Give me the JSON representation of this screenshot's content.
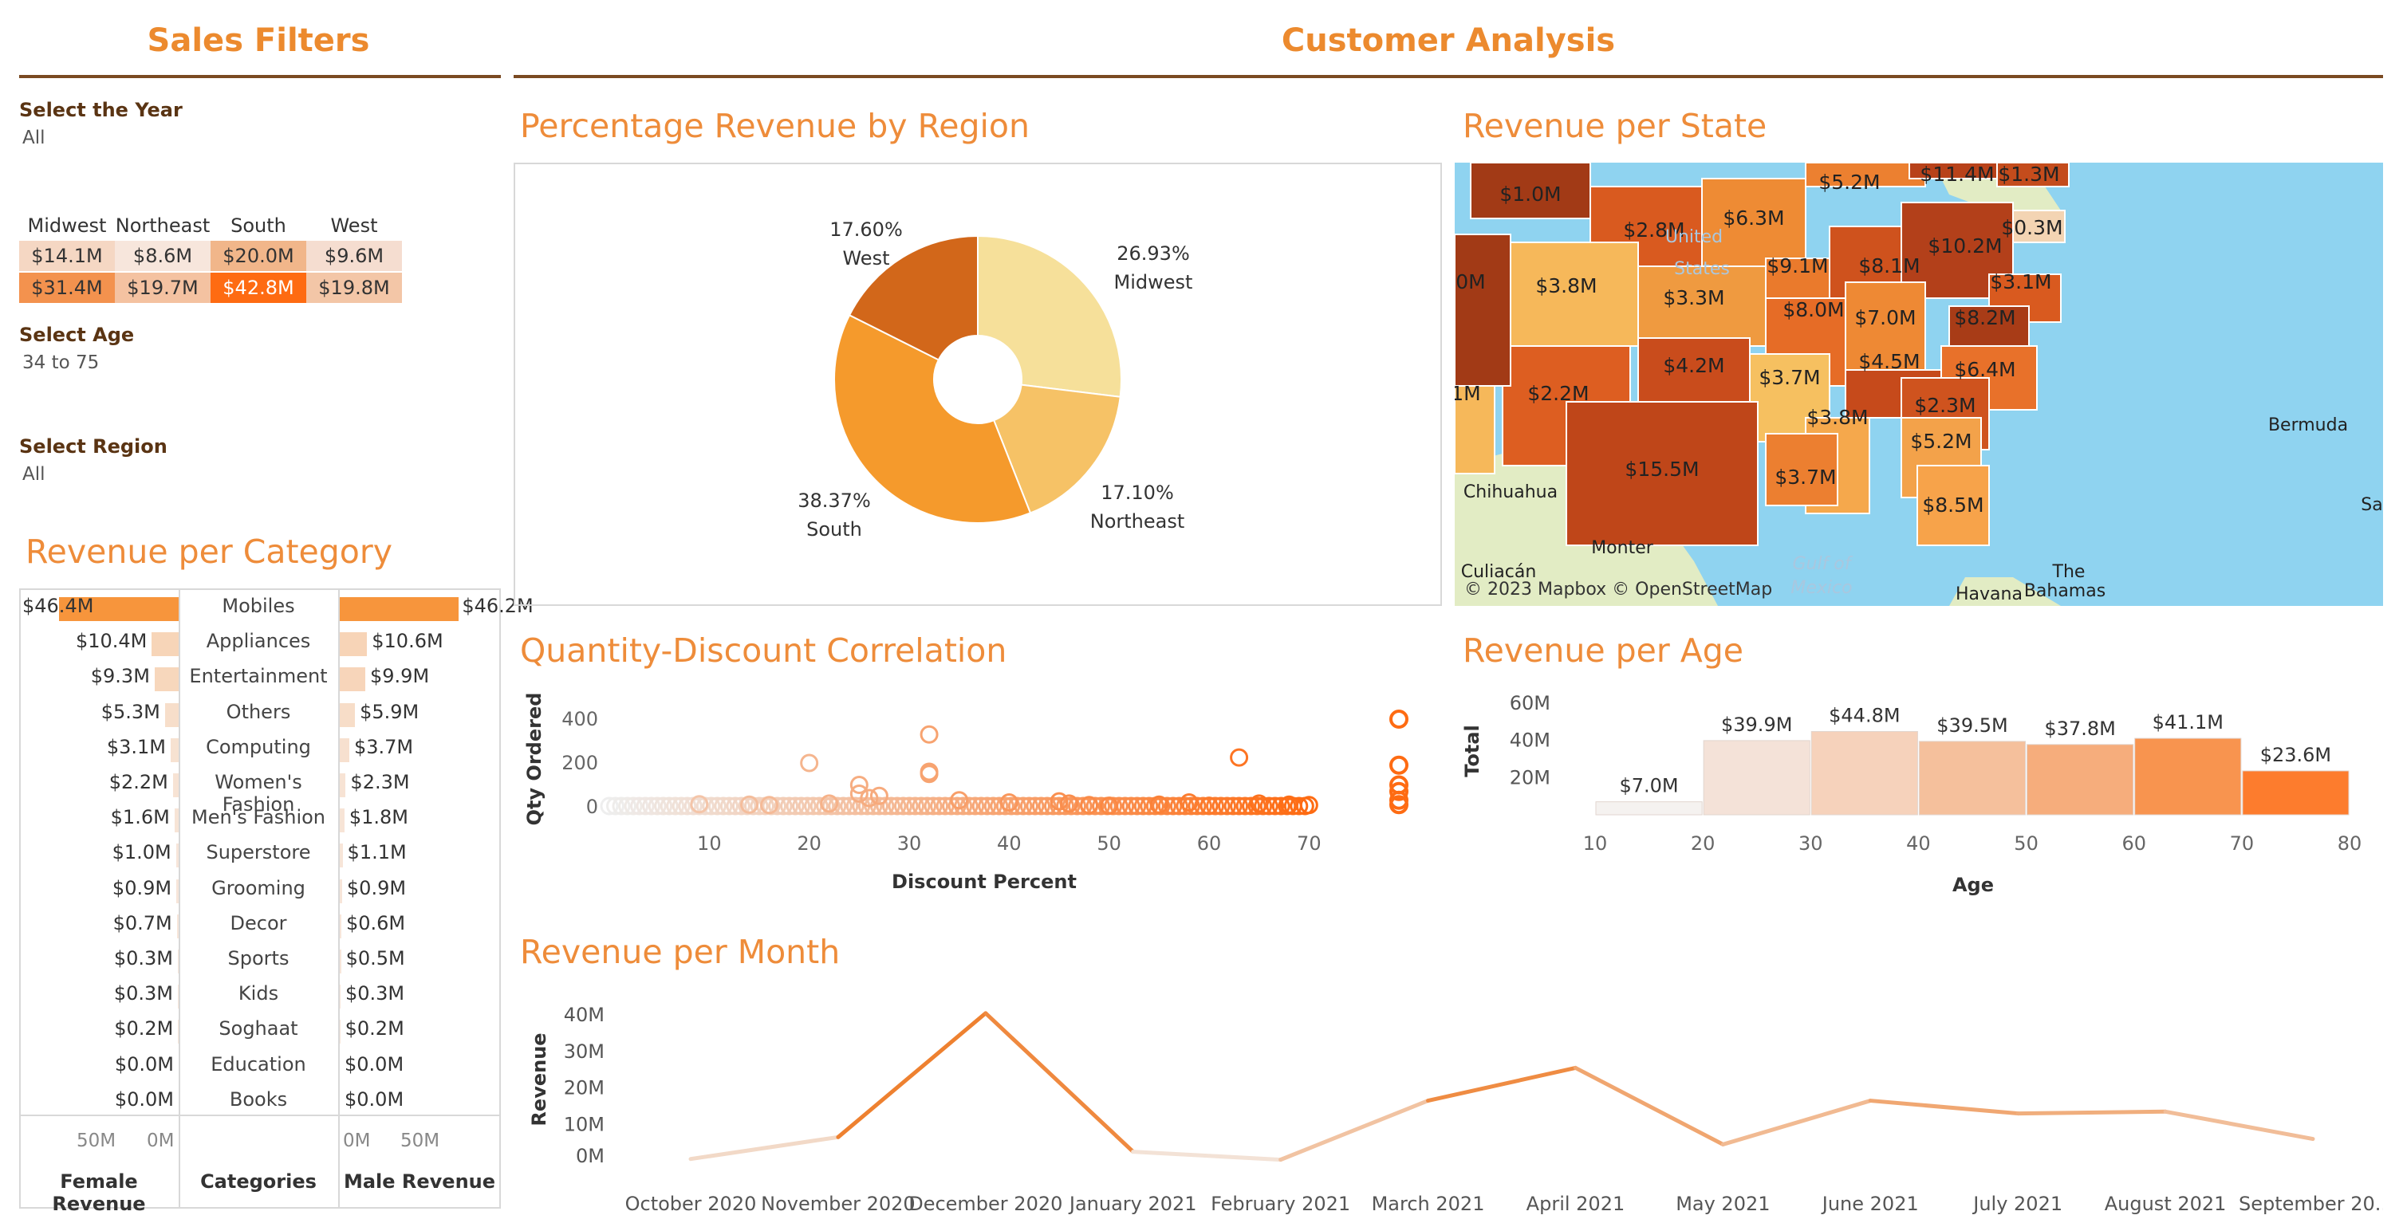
{
  "filters": {
    "header": "Sales Filters",
    "year_label": "Select the Year",
    "year_value": "All",
    "age_label": "Select Age",
    "age_value": "34 to 75",
    "region_label": "Select Region",
    "region_value": "All",
    "region_table": {
      "headers": [
        "Midwest",
        "Northeast",
        "South",
        "West"
      ],
      "row1": [
        "$14.1M",
        "$8.6M",
        "$20.0M",
        "$9.6M"
      ],
      "row2": [
        "$31.4M",
        "$19.7M",
        "$42.8M",
        "$19.8M"
      ],
      "row1_colors": [
        "#f5d7c3",
        "#f7e6dc",
        "#f1b68a",
        "#f5ddd0"
      ],
      "row2_colors": [
        "#f3924e",
        "#f4c2a1",
        "#fe6b12",
        "#f3c6a7"
      ]
    }
  },
  "main_header": "Customer Analysis",
  "category": {
    "title": "Revenue per Category",
    "female_label": "Female Revenue",
    "categories_label": "Categories",
    "male_label": "Male Revenue",
    "female_ticks": [
      "50M",
      "0M"
    ],
    "male_ticks": [
      "0M",
      "50M"
    ],
    "rows": [
      {
        "name": "Mobiles",
        "f": "$46.4M",
        "fv": 46.4,
        "m": "$46.2M",
        "mv": 46.2
      },
      {
        "name": "Appliances",
        "f": "$10.4M",
        "fv": 10.4,
        "m": "$10.6M",
        "mv": 10.6
      },
      {
        "name": "Entertainment",
        "f": "$9.3M",
        "fv": 9.3,
        "m": "$9.9M",
        "mv": 9.9
      },
      {
        "name": "Others",
        "f": "$5.3M",
        "fv": 5.3,
        "m": "$5.9M",
        "mv": 5.9
      },
      {
        "name": "Computing",
        "f": "$3.1M",
        "fv": 3.1,
        "m": "$3.7M",
        "mv": 3.7
      },
      {
        "name": "Women's Fashion",
        "f": "$2.2M",
        "fv": 2.2,
        "m": "$2.3M",
        "mv": 2.3
      },
      {
        "name": "Men's Fashion",
        "f": "$1.6M",
        "fv": 1.6,
        "m": "$1.8M",
        "mv": 1.8
      },
      {
        "name": "Superstore",
        "f": "$1.0M",
        "fv": 1.0,
        "m": "$1.1M",
        "mv": 1.1
      },
      {
        "name": "Grooming",
        "f": "$0.9M",
        "fv": 0.9,
        "m": "$0.9M",
        "mv": 0.9
      },
      {
        "name": "Decor",
        "f": "$0.7M",
        "fv": 0.7,
        "m": "$0.6M",
        "mv": 0.6
      },
      {
        "name": "Sports",
        "f": "$0.3M",
        "fv": 0.3,
        "m": "$0.5M",
        "mv": 0.5
      },
      {
        "name": "Kids",
        "f": "$0.3M",
        "fv": 0.3,
        "m": "$0.3M",
        "mv": 0.3
      },
      {
        "name": "Soghaat",
        "f": "$0.2M",
        "fv": 0.2,
        "m": "$0.2M",
        "mv": 0.2
      },
      {
        "name": "Education",
        "f": "$0.0M",
        "fv": 0.0,
        "m": "$0.0M",
        "mv": 0.0
      },
      {
        "name": "Books",
        "f": "$0.0M",
        "fv": 0.0,
        "m": "$0.0M",
        "mv": 0.0
      }
    ]
  },
  "chart_data": [
    {
      "type": "pie",
      "title": "Percentage Revenue by Region",
      "slices": [
        {
          "label": "Midwest",
          "pct": "26.93%",
          "value": 26.93,
          "color": "#f6e09a"
        },
        {
          "label": "Northeast",
          "pct": "17.10%",
          "value": 17.1,
          "color": "#f6c266"
        },
        {
          "label": "South",
          "pct": "38.37%",
          "value": 38.37,
          "color": "#f59a2c"
        },
        {
          "label": "West",
          "pct": "17.60%",
          "value": 17.6,
          "color": "#d2671a"
        }
      ]
    },
    {
      "type": "scatter",
      "title": "Quantity-Discount Correlation",
      "xlabel": "Discount Percent",
      "ylabel": "Qty Ordered",
      "xticks": [
        10,
        20,
        30,
        40,
        50,
        60,
        70
      ],
      "yticks": [
        0,
        200,
        400
      ],
      "xlim": [
        0,
        75
      ],
      "ylim": [
        -20,
        450
      ],
      "points": [
        [
          9,
          12
        ],
        [
          14,
          10
        ],
        [
          16,
          8
        ],
        [
          20,
          200
        ],
        [
          22,
          15
        ],
        [
          25,
          60
        ],
        [
          25,
          100
        ],
        [
          26,
          40
        ],
        [
          27,
          50
        ],
        [
          32,
          330
        ],
        [
          32,
          160
        ],
        [
          32,
          150
        ],
        [
          35,
          30
        ],
        [
          40,
          20
        ],
        [
          45,
          25
        ],
        [
          46,
          15
        ],
        [
          48,
          8
        ],
        [
          50,
          5
        ],
        [
          55,
          10
        ],
        [
          58,
          20
        ],
        [
          60,
          5
        ],
        [
          63,
          225
        ],
        [
          65,
          15
        ],
        [
          68,
          10
        ],
        [
          70,
          8
        ]
      ],
      "outliers": [
        [
          75,
          400
        ],
        [
          75,
          190
        ],
        [
          75,
          100
        ],
        [
          75,
          70
        ],
        [
          75,
          30
        ],
        [
          75,
          10
        ]
      ]
    },
    {
      "type": "bar",
      "title": "Revenue per Age",
      "xlabel": "Age",
      "ylabel": "Total",
      "xticks": [
        10,
        20,
        30,
        40,
        50,
        60,
        70,
        80
      ],
      "yticks": [
        "20M",
        "40M",
        "60M"
      ],
      "ylim": [
        0,
        60
      ],
      "bins": [
        {
          "from": 10,
          "to": 20,
          "value": 7.0,
          "label": "$7.0M",
          "color": "#f5f2f0"
        },
        {
          "from": 20,
          "to": 30,
          "value": 39.9,
          "label": "$39.9M",
          "color": "#f4e2d8"
        },
        {
          "from": 30,
          "to": 40,
          "value": 44.8,
          "label": "$44.8M",
          "color": "#f6d2bb"
        },
        {
          "from": 40,
          "to": 50,
          "value": 39.5,
          "label": "$39.5M",
          "color": "#f5c09c"
        },
        {
          "from": 50,
          "to": 60,
          "value": 37.8,
          "label": "$37.8M",
          "color": "#f6ad7c"
        },
        {
          "from": 60,
          "to": 70,
          "value": 41.1,
          "label": "$41.1M",
          "color": "#f8944f"
        },
        {
          "from": 70,
          "to": 80,
          "value": 23.6,
          "label": "$23.6M",
          "color": "#fd7c2d"
        }
      ]
    },
    {
      "type": "line",
      "title": "Revenue per Month",
      "ylabel": "Revenue",
      "yticks": [
        "0M",
        "10M",
        "20M",
        "30M",
        "40M"
      ],
      "ylim": [
        0,
        42
      ],
      "categories": [
        "October 2020",
        "November 2020",
        "December 2020",
        "January 2021",
        "February 2021",
        "March 2021",
        "April 2021",
        "May 2021",
        "June 2021",
        "July 2021",
        "August 2021",
        "September 20.."
      ],
      "values": [
        0.5,
        6.5,
        40.5,
        2.5,
        0.3,
        16.5,
        25.5,
        4.5,
        16.5,
        13,
        13.5,
        6
      ]
    }
  ],
  "map": {
    "title": "Revenue per State",
    "attribution": "© 2023 Mapbox © OpenStreetMap",
    "places": [
      "Chihuahua",
      "Culiacán",
      "Monter",
      "Gulf of",
      "Mexico",
      "Havana",
      "The",
      "Bahamas",
      "Bermuda",
      "Sa",
      "United",
      "States"
    ],
    "states": [
      {
        "label": "$1.0M",
        "color": "#a23a16"
      },
      {
        "label": "$2.8M",
        "color": "#d95a1f"
      },
      {
        "label": "$6.3M",
        "color": "#ee8b34"
      },
      {
        "label": "$5.2M",
        "color": "#ec8030"
      },
      {
        "label": "$11.4M",
        "color": "#b8421a"
      },
      {
        "label": "$1.3M",
        "color": "#c44c1c"
      },
      {
        "label": "$0.3M",
        "color": "#f3d4b3"
      },
      {
        "label": "$9.1M",
        "color": "#ea7a2c"
      },
      {
        "label": "$8.1M",
        "color": "#cf521d"
      },
      {
        "label": "$10.2M",
        "color": "#b3401a"
      },
      {
        "label": "$3.1M",
        "color": "#d95a1f"
      },
      {
        "label": "$8.2M",
        "color": "#a83c17"
      },
      {
        "label": "$3.8M",
        "color": "#f6b85a"
      },
      {
        "label": "$3.3M",
        "color": "#ef9a40"
      },
      {
        "label": "$8.0M",
        "color": "#e66c26"
      },
      {
        "label": "$7.0M",
        "color": "#ee8934"
      },
      {
        "label": "$2.2M",
        "color": "#dd5e21"
      },
      {
        "label": "$4.2M",
        "color": "#c94c1c"
      },
      {
        "label": "$3.7M",
        "color": "#f6c060"
      },
      {
        "label": "$4.5M",
        "color": "#c64a1b"
      },
      {
        "label": "$6.4M",
        "color": "#e8712a"
      },
      {
        "label": "$2.3M",
        "color": "#cf531e"
      },
      {
        "label": "$15.5M",
        "color": "#bf4619"
      },
      {
        "label": "$3.8M",
        "color": "#f5a84c"
      },
      {
        "label": "$5.2M",
        "color": "#f3a24a"
      },
      {
        "label": "$3.7M",
        "color": "#ec7f30"
      },
      {
        "label": "$8.5M",
        "color": "#f7a34a"
      },
      {
        "label": "0M",
        "color": "#a23a16"
      },
      {
        "label": ".1M",
        "color": "#f6b85a"
      }
    ]
  }
}
